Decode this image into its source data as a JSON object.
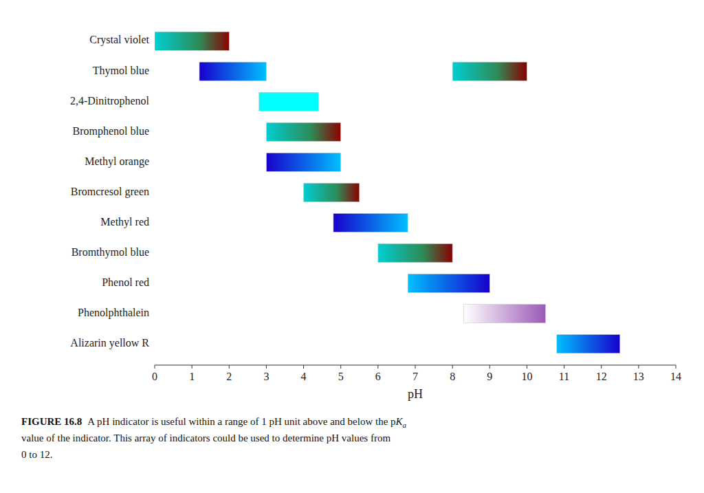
{
  "chart_data": {
    "type": "range_bar",
    "orientation": "horizontal",
    "categories": [
      "Crystal violet",
      "Thymol blue",
      "2,4-Dinitrophenol",
      "Bromphenol blue",
      "Methyl orange",
      "Bromcresol green",
      "Methyl red",
      "Bromthymol blue",
      "Phenol red",
      "Phenolphthalein",
      "Alizarin yellow R"
    ],
    "intervals": [
      [
        {
          "start": 0.0,
          "end": 2.0,
          "colors": [
            "#00CED1",
            "#2E8B57",
            "#8B0000"
          ]
        }
      ],
      [
        {
          "start": 1.2,
          "end": 3.0,
          "colors": [
            "#1800CC",
            "#00BFFF"
          ]
        },
        {
          "start": 8.0,
          "end": 10.0,
          "colors": [
            "#00CED1",
            "#2E8B57",
            "#8B0000"
          ]
        }
      ],
      [
        {
          "start": 2.8,
          "end": 4.4,
          "colors": [
            "#00FFFF",
            "#00FFFF"
          ]
        }
      ],
      [
        {
          "start": 3.0,
          "end": 5.0,
          "colors": [
            "#00CED1",
            "#2E8B57",
            "#8B0000"
          ]
        }
      ],
      [
        {
          "start": 3.0,
          "end": 5.0,
          "colors": [
            "#1800CC",
            "#00BFFF"
          ]
        }
      ],
      [
        {
          "start": 4.0,
          "end": 5.5,
          "colors": [
            "#00CED1",
            "#2E8B57",
            "#8B0000"
          ]
        }
      ],
      [
        {
          "start": 4.8,
          "end": 6.8,
          "colors": [
            "#1800CC",
            "#00BFFF"
          ]
        }
      ],
      [
        {
          "start": 6.0,
          "end": 8.0,
          "colors": [
            "#00CED1",
            "#2E8B57",
            "#8B0000"
          ]
        }
      ],
      [
        {
          "start": 6.8,
          "end": 9.0,
          "colors": [
            "#00BFFF",
            "#1800CC"
          ]
        }
      ],
      [
        {
          "start": 8.3,
          "end": 10.5,
          "colors": [
            "#FFFFFF",
            "#9B59B6"
          ]
        }
      ],
      [
        {
          "start": 10.8,
          "end": 12.5,
          "colors": [
            "#00BFFF",
            "#1800CC"
          ]
        }
      ]
    ],
    "x_label": "pH",
    "xlim": [
      0,
      14
    ],
    "xticks": [
      0,
      1,
      2,
      3,
      4,
      5,
      6,
      7,
      8,
      9,
      10,
      11,
      12,
      13,
      14
    ],
    "grid": false,
    "caption": [
      [
        "FIGURE 16.8",
        "A pH indicator is useful within a range of 1 pH unit above and below the p",
        "K",
        "a"
      ],
      [
        "value of the indicator. This array of indicators could be used to determine pH values from"
      ],
      [
        "0 to 12."
      ]
    ]
  }
}
